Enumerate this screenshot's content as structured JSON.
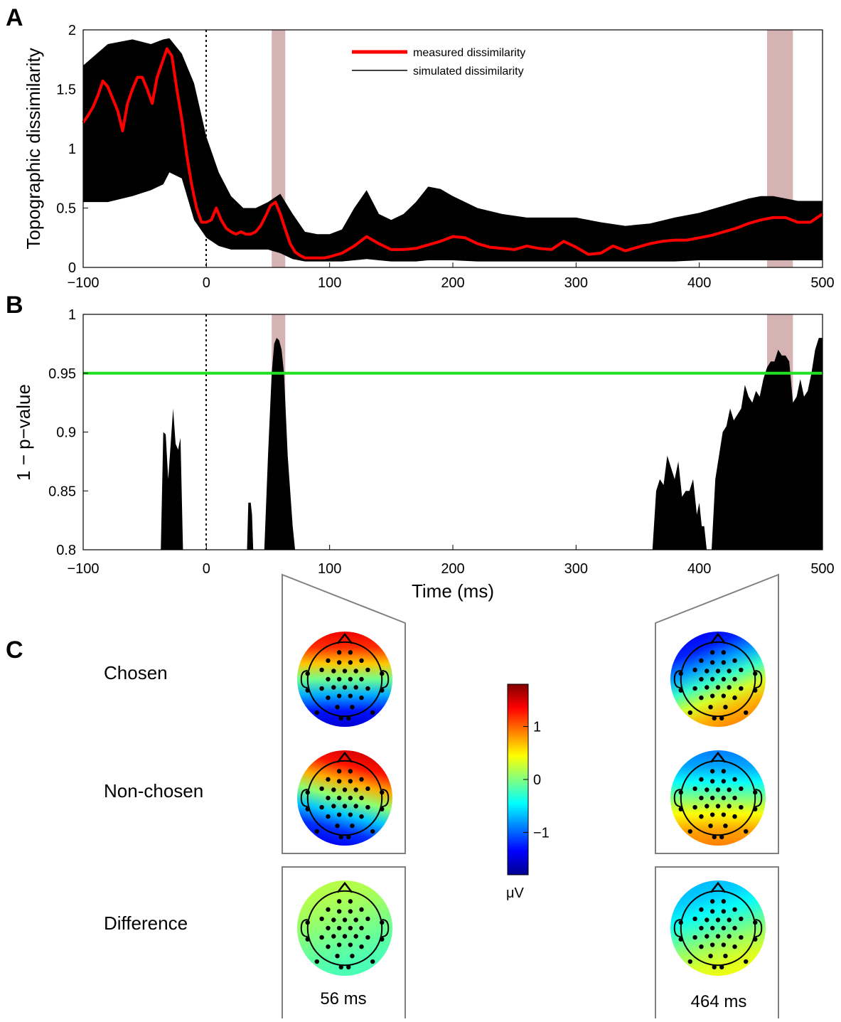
{
  "panels": {
    "a": "A",
    "b": "B",
    "c": "C"
  },
  "chart_data": [
    {
      "type": "line",
      "ylabel": "Topographic dissimilarity",
      "xlim": [
        -100,
        500
      ],
      "ylim": [
        0,
        2
      ],
      "xticks": [
        "−100",
        "0",
        "100",
        "200",
        "300",
        "400",
        "500"
      ],
      "yticks": [
        "0",
        "0.5",
        "1",
        "1.5",
        "2"
      ],
      "legend": {
        "position": "top-center",
        "measured": "measured dissimilarity",
        "simulated": "simulated dissimilarity"
      },
      "highlight_windows": [
        [
          53,
          64
        ],
        [
          455,
          476
        ]
      ],
      "measured": {
        "name": "measured dissimilarity",
        "color": "#ff0000",
        "x": [
          -100,
          -96,
          -92,
          -88,
          -84,
          -80,
          -76,
          -72,
          -68,
          -64,
          -60,
          -56,
          -52,
          -48,
          -44,
          -40,
          -36,
          -32,
          -28,
          -24,
          -20,
          -16,
          -12,
          -8,
          -4,
          0,
          4,
          8,
          12,
          16,
          20,
          24,
          28,
          32,
          36,
          40,
          44,
          48,
          52,
          56,
          60,
          64,
          68,
          72,
          76,
          80,
          84,
          88,
          92,
          96,
          100,
          110,
          120,
          130,
          140,
          150,
          160,
          170,
          180,
          190,
          200,
          210,
          220,
          230,
          240,
          250,
          260,
          270,
          280,
          290,
          300,
          310,
          320,
          330,
          340,
          350,
          360,
          370,
          380,
          390,
          400,
          410,
          420,
          430,
          440,
          450,
          460,
          470,
          480,
          490,
          500
        ],
        "y": [
          1.22,
          1.28,
          1.35,
          1.45,
          1.57,
          1.52,
          1.42,
          1.32,
          1.15,
          1.38,
          1.5,
          1.6,
          1.6,
          1.5,
          1.38,
          1.6,
          1.72,
          1.84,
          1.78,
          1.5,
          1.25,
          0.95,
          0.7,
          0.5,
          0.38,
          0.38,
          0.4,
          0.5,
          0.4,
          0.33,
          0.3,
          0.28,
          0.3,
          0.28,
          0.28,
          0.3,
          0.35,
          0.43,
          0.52,
          0.55,
          0.45,
          0.32,
          0.2,
          0.13,
          0.1,
          0.08,
          0.08,
          0.08,
          0.08,
          0.08,
          0.09,
          0.12,
          0.18,
          0.26,
          0.2,
          0.15,
          0.15,
          0.16,
          0.19,
          0.22,
          0.26,
          0.25,
          0.2,
          0.17,
          0.16,
          0.15,
          0.18,
          0.16,
          0.15,
          0.22,
          0.17,
          0.11,
          0.12,
          0.18,
          0.14,
          0.17,
          0.2,
          0.22,
          0.23,
          0.23,
          0.25,
          0.27,
          0.3,
          0.33,
          0.37,
          0.4,
          0.42,
          0.42,
          0.38,
          0.38,
          0.45
        ]
      },
      "simulated": {
        "name": "simulated dissimilarity",
        "color": "#000000",
        "x": [
          -100,
          -80,
          -60,
          -45,
          -35,
          -30,
          -20,
          -10,
          0,
          10,
          20,
          30,
          40,
          50,
          60,
          70,
          80,
          90,
          100,
          110,
          120,
          130,
          140,
          150,
          160,
          170,
          180,
          190,
          200,
          220,
          240,
          260,
          280,
          300,
          320,
          340,
          360,
          380,
          400,
          420,
          440,
          450,
          460,
          470,
          480,
          490,
          500
        ],
        "upper": [
          1.7,
          1.88,
          1.92,
          1.88,
          1.92,
          1.93,
          1.8,
          1.55,
          1.1,
          0.8,
          0.6,
          0.5,
          0.5,
          0.55,
          0.62,
          0.45,
          0.3,
          0.28,
          0.28,
          0.32,
          0.5,
          0.65,
          0.45,
          0.4,
          0.45,
          0.55,
          0.68,
          0.66,
          0.6,
          0.5,
          0.45,
          0.42,
          0.42,
          0.42,
          0.38,
          0.35,
          0.37,
          0.42,
          0.46,
          0.52,
          0.58,
          0.6,
          0.6,
          0.58,
          0.56,
          0.56,
          0.56
        ],
        "lower": [
          0.55,
          0.55,
          0.6,
          0.65,
          0.7,
          0.8,
          0.75,
          0.4,
          0.25,
          0.18,
          0.15,
          0.15,
          0.15,
          0.15,
          0.12,
          0.07,
          0.05,
          0.05,
          0.05,
          0.05,
          0.06,
          0.07,
          0.06,
          0.05,
          0.05,
          0.05,
          0.06,
          0.06,
          0.06,
          0.05,
          0.05,
          0.05,
          0.05,
          0.05,
          0.05,
          0.05,
          0.05,
          0.05,
          0.06,
          0.06,
          0.06,
          0.06,
          0.06,
          0.06,
          0.06,
          0.06,
          0.06
        ]
      }
    },
    {
      "type": "area",
      "ylabel": "1 − p−value",
      "xlabel": "Time (ms)",
      "xlim": [
        -100,
        500
      ],
      "ylim": [
        0.8,
        1
      ],
      "xticks": [
        "−100",
        "0",
        "100",
        "200",
        "300",
        "400",
        "500"
      ],
      "yticks": [
        "0.8",
        "0.85",
        "0.9",
        "0.95",
        "1"
      ],
      "threshold": {
        "value": 0.95,
        "color": "#22e022"
      },
      "highlight_windows": [
        [
          53,
          64
        ],
        [
          455,
          476
        ]
      ],
      "segments": [
        {
          "x": [
            -37,
            -35,
            -33,
            -31,
            -29,
            -27,
            -25,
            -23,
            -21,
            -19
          ],
          "y": [
            0.8,
            0.9,
            0.898,
            0.86,
            0.89,
            0.92,
            0.89,
            0.885,
            0.895,
            0.8
          ]
        },
        {
          "x": [
            33,
            34,
            36,
            37,
            38
          ],
          "y": [
            0.8,
            0.84,
            0.84,
            0.83,
            0.8
          ]
        },
        {
          "x": [
            47,
            50,
            53,
            55,
            57,
            59,
            61,
            63,
            66,
            70,
            72
          ],
          "y": [
            0.8,
            0.88,
            0.95,
            0.975,
            0.98,
            0.978,
            0.97,
            0.95,
            0.88,
            0.82,
            0.8
          ]
        },
        {
          "x": [
            362,
            365,
            368,
            371,
            374,
            377,
            380,
            383,
            386,
            389,
            392,
            395,
            398,
            400,
            402,
            404,
            406
          ],
          "y": [
            0.8,
            0.85,
            0.86,
            0.855,
            0.88,
            0.87,
            0.86,
            0.875,
            0.845,
            0.85,
            0.85,
            0.86,
            0.83,
            0.84,
            0.82,
            0.82,
            0.8
          ]
        },
        {
          "x": [
            410,
            413,
            416,
            419,
            422,
            425,
            428,
            431,
            434,
            437,
            440,
            443,
            446,
            449,
            452,
            455,
            458,
            461,
            464,
            467,
            470,
            473,
            476,
            479,
            482,
            485,
            488,
            491,
            494,
            497,
            500
          ],
          "y": [
            0.8,
            0.86,
            0.88,
            0.9,
            0.905,
            0.92,
            0.91,
            0.915,
            0.92,
            0.94,
            0.93,
            0.925,
            0.935,
            0.93,
            0.945,
            0.955,
            0.96,
            0.96,
            0.97,
            0.965,
            0.965,
            0.96,
            0.925,
            0.93,
            0.945,
            0.93,
            0.935,
            0.95,
            0.97,
            0.98,
            0.98
          ]
        }
      ]
    }
  ],
  "topomaps": {
    "row_labels": {
      "chosen": "Chosen",
      "nonchosen": "Non-chosen",
      "difference": "Difference"
    },
    "colorbar": {
      "unit": "μV",
      "ticks": [
        "1",
        "0",
        "−1"
      ],
      "range": [
        -1.8,
        1.8
      ],
      "colormap": "jet"
    },
    "left_time": "56 ms",
    "right_time": "464 ms",
    "maps": {
      "chosen_56": {
        "front": 1.4,
        "back": -1.5,
        "tilt": 0.0
      },
      "nonchosen_56": {
        "front": 1.5,
        "back": -1.4,
        "tilt": 0.5
      },
      "diff_56": {
        "front": 0.2,
        "back": -0.2,
        "tilt": -0.6
      },
      "chosen_464": {
        "front": -1.4,
        "back": 0.9,
        "tilt": -0.8
      },
      "nonchosen_464": {
        "front": -0.9,
        "back": 0.9,
        "tilt": 0.0
      },
      "diff_464": {
        "front": -0.7,
        "back": 0.4,
        "tilt": -0.6
      }
    }
  }
}
